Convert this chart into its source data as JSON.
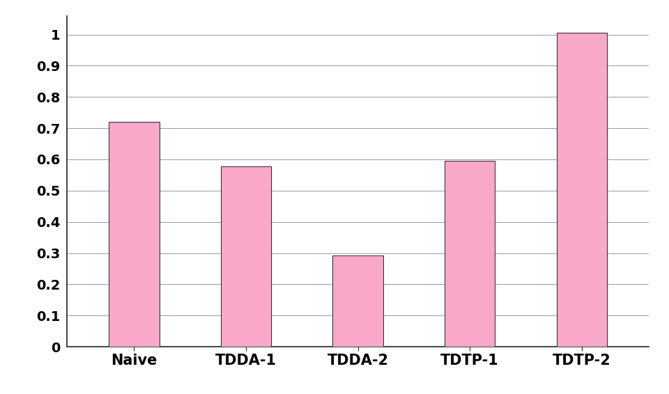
{
  "categories": [
    "Naive",
    "TDDA-1",
    "TDDA-2",
    "TDTP-1",
    "TDTP-2"
  ],
  "values": [
    0.72,
    0.577,
    0.293,
    0.596,
    1.005
  ],
  "bar_color": "#F9A8C9",
  "bar_edge_color": "#222222",
  "bar_edge_width": 0.7,
  "ylim": [
    0,
    1.06
  ],
  "yticks": [
    0,
    0.1,
    0.2,
    0.3,
    0.4,
    0.5,
    0.6,
    0.7,
    0.8,
    0.9,
    1.0
  ],
  "ytick_labels": [
    "0",
    "0.1",
    "0.2",
    "0.3",
    "0.4",
    "0.5",
    "0.6",
    "0.7",
    "0.8",
    "0.9",
    "1"
  ],
  "grid_color": "#888888",
  "grid_linewidth": 0.6,
  "background_color": "#ffffff",
  "tick_fontsize": 14,
  "xlabel_fontsize": 15,
  "bar_width": 0.45,
  "spine_color": "#222222"
}
